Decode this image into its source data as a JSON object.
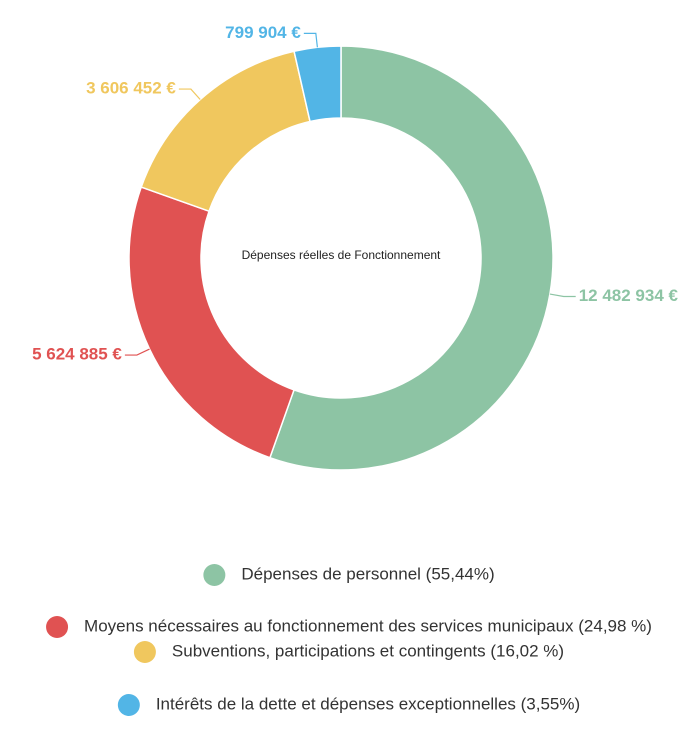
{
  "chart_data": {
    "type": "donut",
    "center_text": "Dépenses réelles de Fonctionnement",
    "series": [
      {
        "name": "Dépenses de personnel (55,44%)",
        "color": "#8dc4a4",
        "values": [
          12482934
        ],
        "value_labels": [
          "12 482 934 €"
        ]
      },
      {
        "name": "Moyens nécessaires au fonctionnement des services municipaux (24,98 %)",
        "color": "#e05252",
        "values": [
          5624885
        ],
        "value_labels": [
          "5 624 885 €"
        ]
      },
      {
        "name": "Subventions, participations et contingents (16,02 %)",
        "color": "#f0c75e",
        "values": [
          3606452
        ],
        "value_labels": [
          "3 606 452 €"
        ]
      },
      {
        "name": "Intérêts de la dette et dépenses exceptionnelles (3,55%)",
        "color": "#52b5e6",
        "values": [
          799904
        ],
        "value_labels": [
          "799 904 €"
        ]
      }
    ]
  }
}
